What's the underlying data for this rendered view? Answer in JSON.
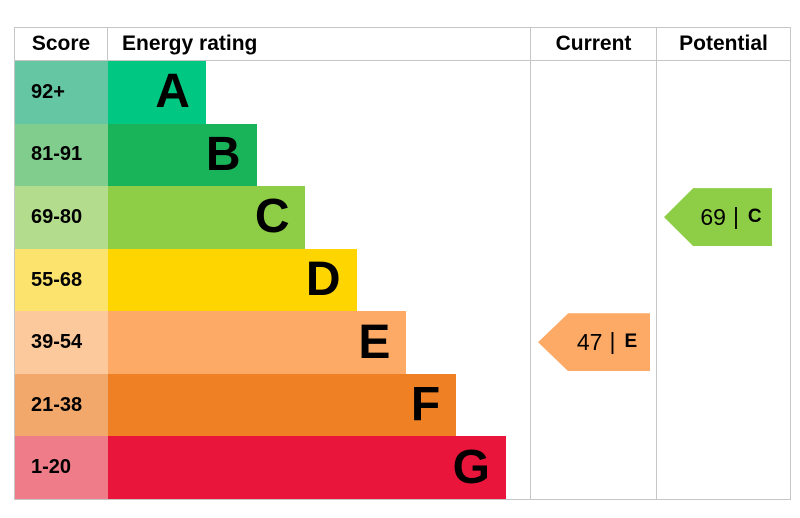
{
  "title": "Energy rating chart",
  "colors": {
    "border": "#c6c6c6",
    "text": "#000000",
    "background": "#ffffff"
  },
  "header": {
    "score_label": "Score",
    "rating_label": "Energy rating",
    "current_label": "Current",
    "potential_label": "Potential"
  },
  "chart_data": {
    "type": "bar",
    "title": "Energy rating",
    "legend_position": "none",
    "grid": false,
    "bands": [
      {
        "score_range": "92+",
        "grade": "A",
        "bar_color": "#00c781",
        "score_bg": "#65c6a4",
        "bar_pct": 23.2
      },
      {
        "score_range": "81-91",
        "grade": "B",
        "bar_color": "#19b459",
        "score_bg": "#81cd8d",
        "bar_pct": 35.2
      },
      {
        "score_range": "69-80",
        "grade": "C",
        "bar_color": "#8dce46",
        "score_bg": "#b3dc8d",
        "bar_pct": 46.8
      },
      {
        "score_range": "55-68",
        "grade": "D",
        "bar_color": "#ffd500",
        "score_bg": "#fbe36e",
        "bar_pct": 58.9
      },
      {
        "score_range": "39-54",
        "grade": "E",
        "bar_color": "#fcaa65",
        "score_bg": "#fcc99c",
        "bar_pct": 70.7
      },
      {
        "score_range": "21-38",
        "grade": "F",
        "bar_color": "#ef8023",
        "score_bg": "#f2a86b",
        "bar_pct": 82.5
      },
      {
        "score_range": "1-20",
        "grade": "G",
        "bar_color": "#e9153b",
        "score_bg": "#ee7d89",
        "bar_pct": 94.3
      }
    ],
    "current": {
      "value": "47",
      "divider": "|",
      "grade": "E",
      "color": "#fcaa65",
      "row_index": 4
    },
    "potential": {
      "value": "69",
      "divider": "|",
      "grade": "C",
      "color": "#8dce46",
      "row_index": 2
    }
  }
}
